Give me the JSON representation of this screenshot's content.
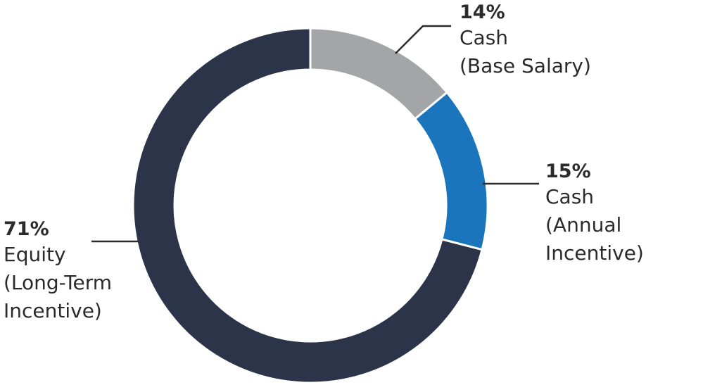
{
  "chart_data": {
    "type": "pie",
    "donut": true,
    "title": "",
    "slices": [
      {
        "value": 14,
        "color": "#a3a5a7",
        "pct_label": "14%",
        "lines": [
          "Cash",
          "(Base Salary)"
        ]
      },
      {
        "value": 15,
        "color": "#1a75bd",
        "pct_label": "15%",
        "lines": [
          "Cash",
          "(Annual Incentive)"
        ]
      },
      {
        "value": 71,
        "color": "#2b3449",
        "pct_label": "71%",
        "lines": [
          "Equity",
          "(Long-Term",
          "Incentive)"
        ]
      }
    ],
    "leader_line_color": "#2b2b2b"
  }
}
